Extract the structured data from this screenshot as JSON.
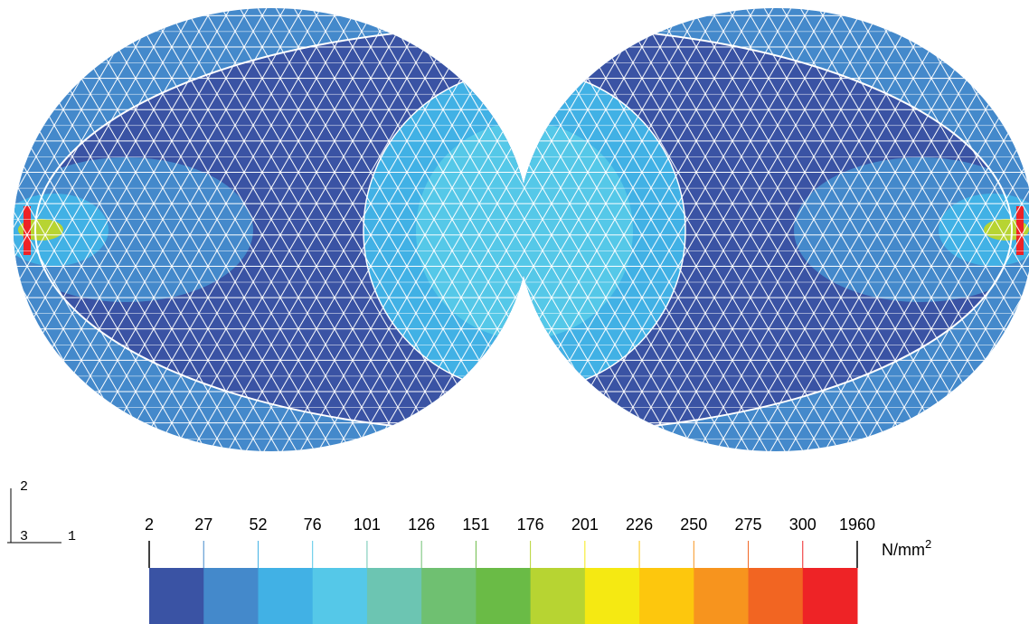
{
  "legend": {
    "ticks": [
      2,
      27,
      52,
      76,
      101,
      126,
      151,
      176,
      201,
      226,
      250,
      275,
      300,
      1960
    ],
    "colors": [
      "#3a53a4",
      "#4489cb",
      "#41b1e5",
      "#55c8e8",
      "#6cc5b2",
      "#6fc071",
      "#6abb46",
      "#b7d432",
      "#f5e912",
      "#fdc70d",
      "#f7941e",
      "#f26522",
      "#ee2326"
    ],
    "unit": "N/mm",
    "unit_power": "2"
  },
  "triad": {
    "axis_1": "1",
    "axis_2": "2",
    "axis_3": "3"
  }
}
